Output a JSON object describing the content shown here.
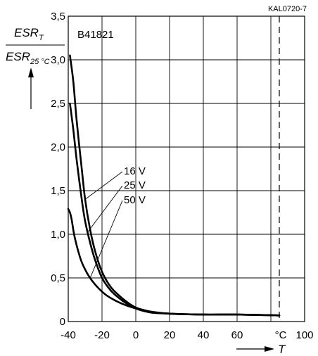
{
  "chart_data": {
    "type": "line",
    "document_code": "KAL0720-7",
    "series_label": "B41821",
    "ylabel": {
      "main": "ESR",
      "main_sub": "T",
      "denominator": "ESR",
      "denominator_sub": "25 °C"
    },
    "xlabel": "T",
    "x_unit": "°C",
    "xlim": [
      -40,
      100
    ],
    "ylim": [
      0,
      3.5
    ],
    "x_ticks": [
      {
        "value": -40,
        "label": "-40"
      },
      {
        "value": -20,
        "label": "-20"
      },
      {
        "value": 0,
        "label": "0"
      },
      {
        "value": 20,
        "label": "20"
      },
      {
        "value": 40,
        "label": "40"
      },
      {
        "value": 60,
        "label": "60"
      },
      {
        "value": 100,
        "label": "100"
      }
    ],
    "y_ticks": [
      {
        "value": 0,
        "label": "0"
      },
      {
        "value": 0.5,
        "label": "0,5"
      },
      {
        "value": 1.0,
        "label": "1,0"
      },
      {
        "value": 1.5,
        "label": "1,5"
      },
      {
        "value": 2.0,
        "label": "2,0"
      },
      {
        "value": 2.5,
        "label": "2,5"
      },
      {
        "value": 3.0,
        "label": "3,0"
      },
      {
        "value": 3.5,
        "label": "3,5"
      }
    ],
    "grid": true,
    "reference_line_dashed_x": 85,
    "series": [
      {
        "name": "16 V",
        "x": [
          -39,
          -37,
          -35,
          -32,
          -30,
          -27,
          -24,
          -20,
          -15,
          -10,
          -5,
          0,
          5,
          10,
          20,
          40,
          60,
          85
        ],
        "y": [
          3.05,
          2.75,
          2.3,
          1.75,
          1.4,
          1.05,
          0.8,
          0.57,
          0.4,
          0.3,
          0.22,
          0.16,
          0.13,
          0.11,
          0.09,
          0.08,
          0.08,
          0.07
        ]
      },
      {
        "name": "25 V",
        "x": [
          -39,
          -37,
          -35,
          -32,
          -30,
          -27,
          -24,
          -20,
          -15,
          -10,
          -5,
          0,
          5,
          10,
          20,
          40,
          60,
          85
        ],
        "y": [
          2.5,
          2.2,
          1.85,
          1.4,
          1.15,
          0.9,
          0.7,
          0.5,
          0.36,
          0.27,
          0.2,
          0.15,
          0.12,
          0.11,
          0.09,
          0.08,
          0.08,
          0.07
        ]
      },
      {
        "name": "50 V",
        "x": [
          -40,
          -39,
          -38,
          -37,
          -36,
          -34,
          -32,
          -29,
          -26,
          -22,
          -18,
          -14,
          -10,
          -5,
          0,
          5,
          10,
          20,
          40,
          60,
          85
        ],
        "y": [
          1.29,
          1.25,
          1.17,
          1.05,
          0.95,
          0.8,
          0.68,
          0.56,
          0.47,
          0.38,
          0.31,
          0.26,
          0.22,
          0.18,
          0.15,
          0.12,
          0.1,
          0.09,
          0.08,
          0.08,
          0.07
        ]
      }
    ]
  }
}
